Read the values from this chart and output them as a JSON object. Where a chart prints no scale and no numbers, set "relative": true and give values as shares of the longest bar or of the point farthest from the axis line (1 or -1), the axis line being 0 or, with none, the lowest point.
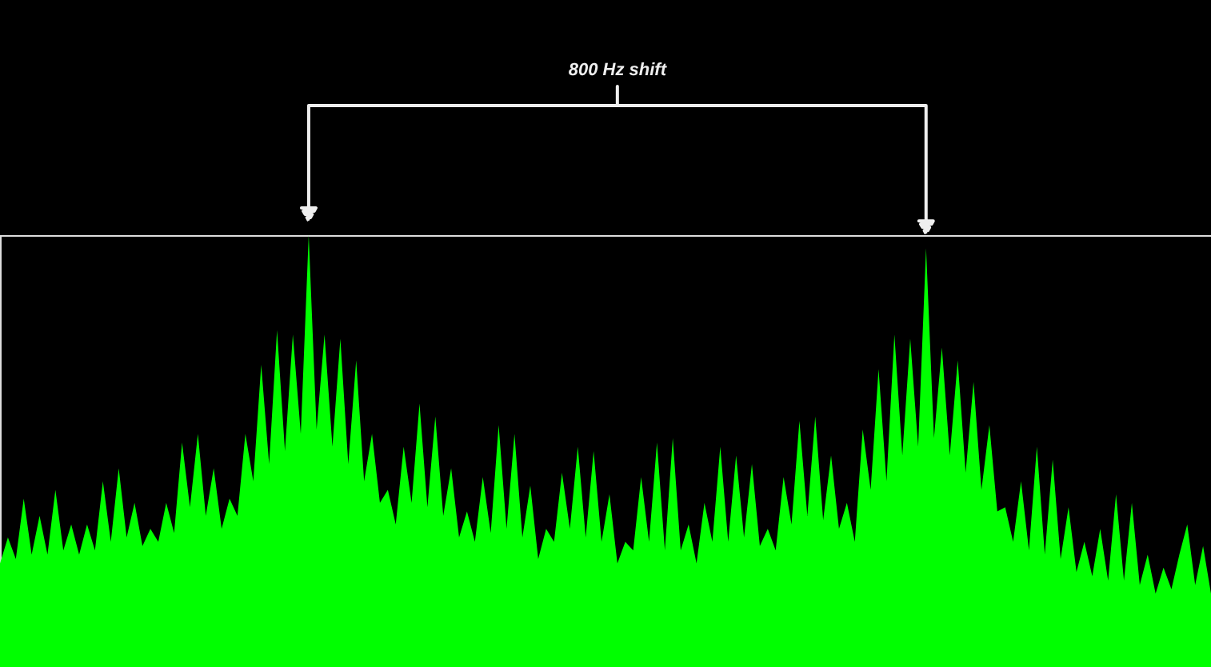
{
  "chart_data": {
    "type": "area",
    "relative": true,
    "categories": [
      null,
      null,
      null,
      null,
      null,
      null,
      null,
      null,
      null,
      null,
      null,
      null,
      null,
      null,
      null,
      null,
      null,
      null,
      null,
      null,
      null,
      null,
      null,
      null,
      null,
      null,
      null,
      null,
      null,
      null,
      null,
      null,
      null,
      null,
      null,
      null,
      null,
      null,
      null,
      null,
      null,
      null,
      null,
      null,
      null,
      null,
      null,
      null,
      null,
      null,
      null,
      null,
      null,
      null,
      null,
      null,
      null,
      null,
      null,
      null,
      null,
      null,
      null,
      null,
      null,
      null,
      null,
      null,
      null,
      null,
      null,
      null,
      null,
      null,
      null,
      null,
      null,
      null,
      null,
      null,
      null,
      null,
      null,
      null,
      null,
      null,
      null,
      null,
      null,
      null,
      null,
      null,
      null,
      null,
      null,
      null,
      null,
      null,
      null,
      null,
      null,
      null,
      null,
      null,
      null,
      null,
      null,
      null,
      null,
      null,
      null,
      null,
      null,
      null,
      null,
      null,
      null,
      null,
      null,
      null,
      null,
      null,
      null,
      null,
      null,
      null,
      null,
      null,
      null,
      null,
      null,
      null,
      null,
      null,
      null,
      null,
      null,
      null,
      null,
      null,
      null,
      null,
      null,
      null,
      null,
      null,
      null,
      null,
      null,
      null,
      null,
      null,
      null,
      null
    ],
    "series": [
      {
        "color": "#00ff00",
        "values": [
          0.24,
          0.3,
          0.25,
          0.39,
          0.26,
          0.35,
          0.26,
          0.41,
          0.27,
          0.33,
          0.26,
          0.33,
          0.27,
          0.43,
          0.29,
          0.46,
          0.3,
          0.38,
          0.28,
          0.32,
          0.29,
          0.38,
          0.31,
          0.52,
          0.37,
          0.54,
          0.35,
          0.46,
          0.32,
          0.39,
          0.35,
          0.54,
          0.43,
          0.7,
          0.47,
          0.78,
          0.5,
          0.77,
          0.54,
          1.0,
          0.55,
          0.77,
          0.51,
          0.76,
          0.47,
          0.71,
          0.43,
          0.54,
          0.38,
          0.41,
          0.33,
          0.51,
          0.38,
          0.61,
          0.37,
          0.58,
          0.35,
          0.46,
          0.3,
          0.36,
          0.29,
          0.44,
          0.31,
          0.56,
          0.32,
          0.54,
          0.3,
          0.42,
          0.25,
          0.32,
          0.29,
          0.45,
          0.32,
          0.51,
          0.3,
          0.5,
          0.29,
          0.4,
          0.24,
          0.29,
          0.27,
          0.44,
          0.29,
          0.52,
          0.27,
          0.53,
          0.27,
          0.33,
          0.24,
          0.38,
          0.29,
          0.51,
          0.29,
          0.49,
          0.3,
          0.47,
          0.28,
          0.32,
          0.27,
          0.44,
          0.33,
          0.57,
          0.35,
          0.58,
          0.34,
          0.49,
          0.32,
          0.38,
          0.29,
          0.55,
          0.41,
          0.69,
          0.43,
          0.77,
          0.49,
          0.76,
          0.51,
          0.97,
          0.53,
          0.74,
          0.49,
          0.71,
          0.45,
          0.66,
          0.41,
          0.56,
          0.36,
          0.37,
          0.29,
          0.43,
          0.27,
          0.51,
          0.26,
          0.48,
          0.25,
          0.37,
          0.22,
          0.29,
          0.21,
          0.32,
          0.2,
          0.4,
          0.2,
          0.38,
          0.19,
          0.26,
          0.17,
          0.23,
          0.18,
          0.26,
          0.33,
          0.19,
          0.28,
          0.17
        ]
      }
    ],
    "annotations": [
      "800 Hz shift"
    ]
  }
}
